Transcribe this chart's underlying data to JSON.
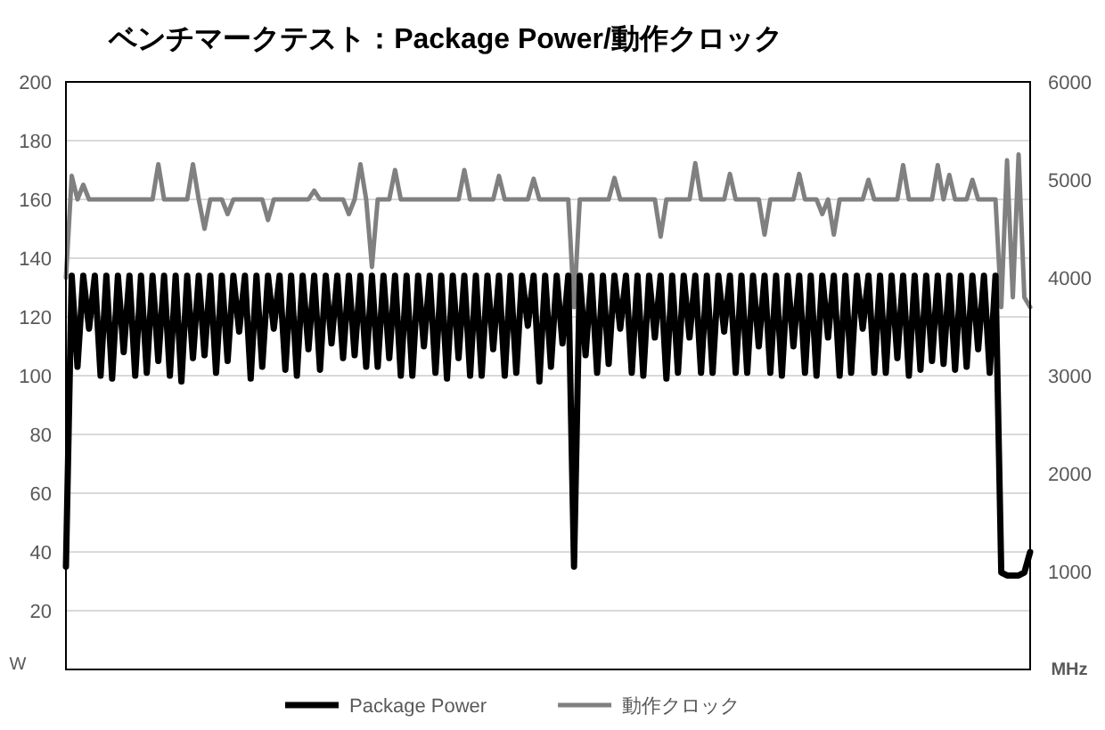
{
  "chart_data": {
    "type": "line",
    "title": "ベンチマークテスト：Package Power/動作クロック",
    "ylabel": "W",
    "y2label": "MHz",
    "categories": [
      null,
      null,
      null,
      null,
      null,
      null,
      null,
      null,
      null,
      null,
      null,
      null,
      null,
      null,
      null,
      null,
      null,
      null,
      null,
      null,
      null,
      null,
      null,
      null,
      null,
      null,
      null,
      null,
      null,
      null,
      null,
      null,
      null,
      null,
      null,
      null,
      null,
      null,
      null,
      null,
      null,
      null,
      null,
      null,
      null,
      null,
      null,
      null,
      null,
      null,
      null,
      null,
      null,
      null,
      null,
      null,
      null,
      null,
      null,
      null,
      null,
      null,
      null,
      null,
      null,
      null,
      null,
      null,
      null,
      null,
      null,
      null,
      null,
      null,
      null,
      null,
      null,
      null,
      null,
      null,
      null,
      null,
      null,
      null,
      null,
      null,
      null,
      null,
      null,
      null,
      null,
      null,
      null,
      null,
      null,
      null,
      null,
      null,
      null,
      null,
      null,
      null,
      null,
      null,
      null,
      null,
      null,
      null,
      null,
      null,
      null,
      null,
      null,
      null,
      null,
      null,
      null,
      null,
      null,
      null,
      null,
      null,
      null,
      null,
      null,
      null,
      null,
      null,
      null,
      null,
      null,
      null,
      null,
      null,
      null,
      null,
      null,
      null,
      null,
      null,
      null,
      null,
      null,
      null,
      null,
      null,
      null,
      null,
      null,
      null,
      null,
      null,
      null,
      null,
      null,
      null,
      null,
      null,
      null,
      null,
      null,
      null,
      null,
      null,
      null,
      null,
      null,
      null
    ],
    "series": [
      {
        "name": "Package Power",
        "color": "#000000",
        "values": [
          35,
          134,
          103,
          134,
          116,
          134,
          100,
          134,
          99,
          134,
          108,
          134,
          100,
          134,
          101,
          134,
          105,
          134,
          100,
          134,
          98,
          134,
          106,
          134,
          107,
          134,
          101,
          134,
          105,
          134,
          115,
          134,
          99,
          134,
          103,
          134,
          116,
          134,
          102,
          134,
          100,
          134,
          109,
          134,
          102,
          134,
          111,
          134,
          106,
          134,
          107,
          134,
          103,
          134,
          103,
          134,
          106,
          134,
          100,
          134,
          100,
          134,
          110,
          134,
          101,
          134,
          99,
          134,
          106,
          134,
          100,
          134,
          100,
          134,
          109,
          134,
          100,
          134,
          101,
          134,
          117,
          134,
          98,
          134,
          103,
          134,
          111,
          134,
          35,
          134,
          107,
          134,
          101,
          134,
          104,
          134,
          116,
          134,
          101,
          134,
          100,
          134,
          113,
          134,
          99,
          134,
          101,
          134,
          113,
          134,
          101,
          134,
          101,
          134,
          115,
          134,
          101,
          134,
          101,
          134,
          110,
          134,
          101,
          134,
          100,
          134,
          110,
          134,
          101,
          134,
          100,
          134,
          113,
          134,
          100,
          134,
          101,
          134,
          116,
          134,
          101,
          134,
          101,
          134,
          106,
          134,
          100,
          134,
          102,
          134,
          105,
          134,
          104,
          134,
          102,
          134,
          103,
          134,
          109,
          134,
          101,
          134,
          33,
          32,
          32,
          32,
          33,
          40
        ]
      },
      {
        "name": "動作クロック",
        "color": "#808080",
        "axis": "y2",
        "values": [
          4000,
          5040,
          4800,
          4950,
          4800,
          4800,
          4800,
          4800,
          4800,
          4800,
          4800,
          4800,
          4800,
          4800,
          4800,
          4800,
          5160,
          4800,
          4800,
          4800,
          4800,
          4800,
          5160,
          4800,
          4500,
          4800,
          4800,
          4800,
          4650,
          4800,
          4800,
          4800,
          4800,
          4800,
          4800,
          4590,
          4800,
          4800,
          4800,
          4800,
          4800,
          4800,
          4800,
          4890,
          4800,
          4800,
          4800,
          4800,
          4800,
          4650,
          4800,
          5160,
          4800,
          4110,
          4800,
          4800,
          4800,
          5100,
          4800,
          4800,
          4800,
          4800,
          4800,
          4800,
          4800,
          4800,
          4800,
          4800,
          4800,
          5100,
          4800,
          4800,
          4800,
          4800,
          4800,
          5040,
          4800,
          4800,
          4800,
          4800,
          4800,
          5010,
          4800,
          4800,
          4800,
          4800,
          4800,
          4800,
          3700,
          4800,
          4800,
          4800,
          4800,
          4800,
          4800,
          5020,
          4800,
          4800,
          4800,
          4800,
          4800,
          4800,
          4800,
          4420,
          4800,
          4800,
          4800,
          4800,
          4800,
          5170,
          4800,
          4800,
          4800,
          4800,
          4800,
          5060,
          4800,
          4800,
          4800,
          4800,
          4800,
          4440,
          4800,
          4800,
          4800,
          4800,
          4800,
          5060,
          4800,
          4800,
          4800,
          4650,
          4800,
          4440,
          4800,
          4800,
          4800,
          4800,
          4800,
          5000,
          4800,
          4800,
          4800,
          4800,
          4800,
          5150,
          4800,
          4800,
          4800,
          4800,
          4800,
          5150,
          4800,
          5050,
          4800,
          4800,
          4800,
          5000,
          4800,
          4800,
          4800,
          4800,
          3700,
          5200,
          3800,
          5260,
          3800,
          3700
        ]
      }
    ],
    "ylim": [
      0,
      200
    ],
    "yticks": [
      20,
      40,
      60,
      80,
      100,
      120,
      140,
      160,
      180,
      200
    ],
    "y2lim": [
      0,
      6000
    ],
    "y2ticks": [
      1000,
      2000,
      3000,
      4000,
      5000,
      6000
    ],
    "grid": "y",
    "legend": "bottom"
  }
}
